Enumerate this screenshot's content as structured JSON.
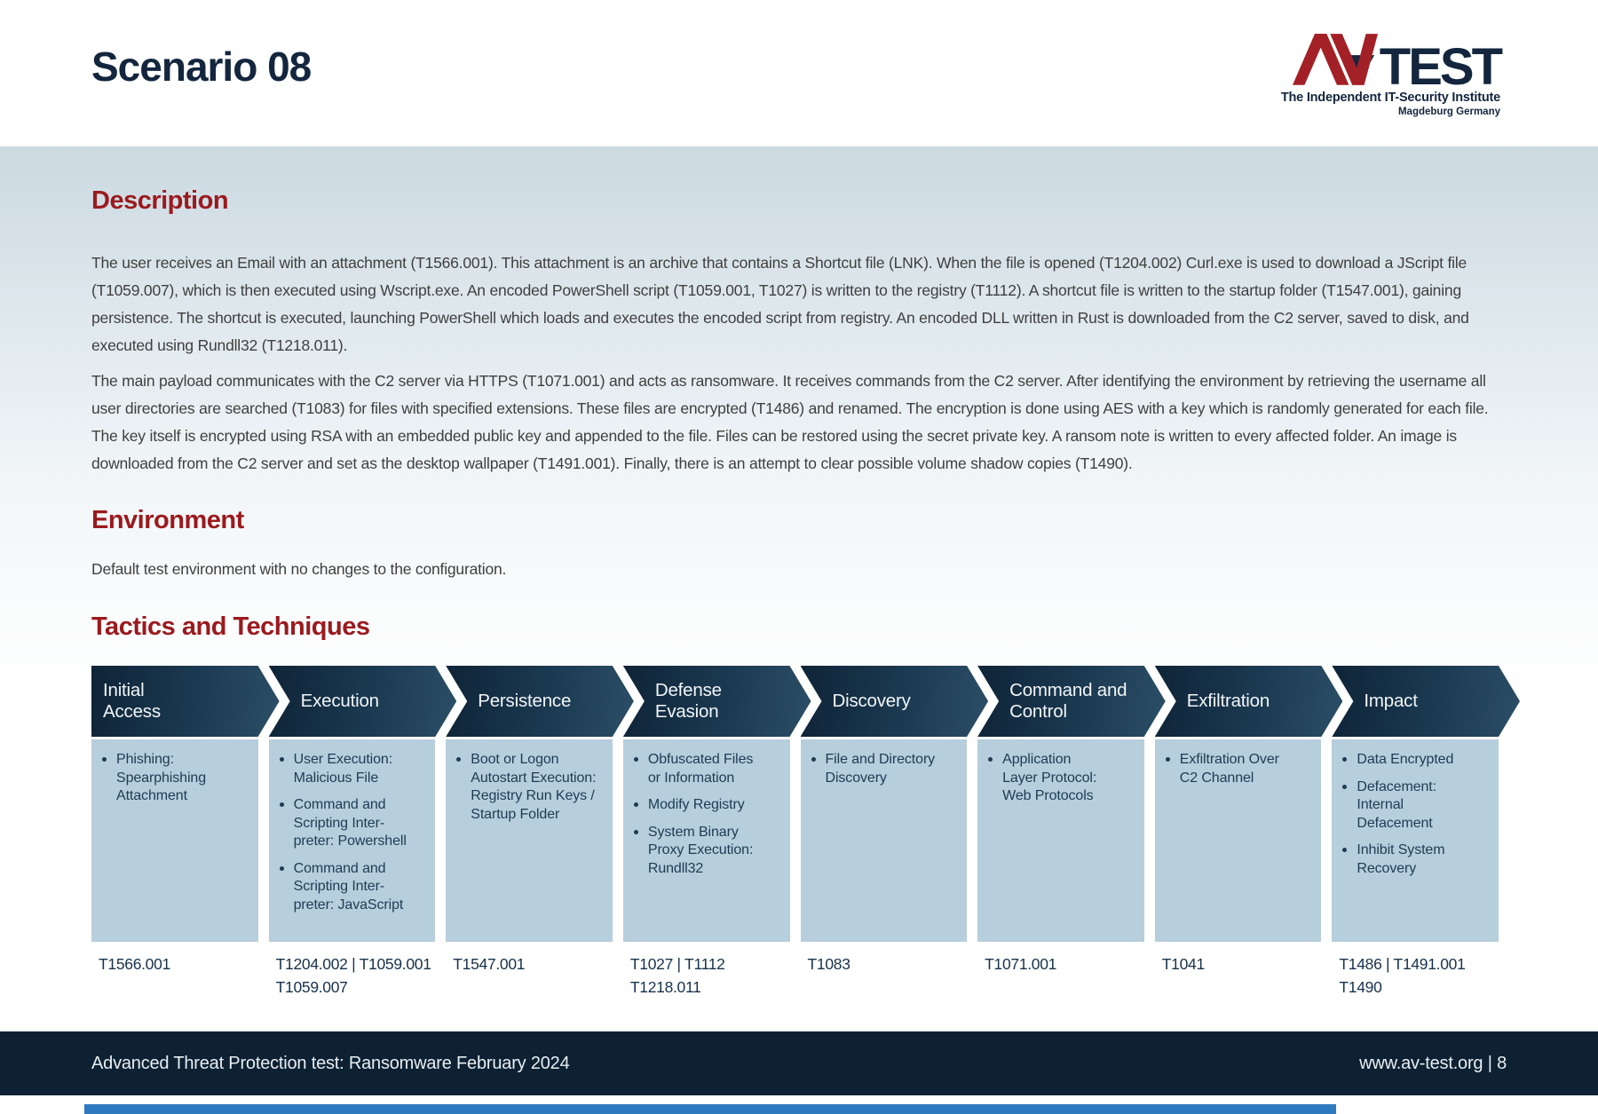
{
  "page": {
    "title": "Scenario 08"
  },
  "logo": {
    "test": "TEST",
    "tagline": "The Independent IT-Security Institute",
    "location": "Magdeburg Germany"
  },
  "description": {
    "heading": "Description",
    "paragraphs": [
      "The user receives an Email with an attachment (T1566.001). This attachment is an archive that contains a Shortcut file (LNK). When the file is opened (T1204.002) Curl.exe is used to download a JScript file (T1059.007), which is then executed using Wscript.exe. An encoded PowerShell script (T1059.001, T1027) is written to the registry (T1112). A shortcut file is written to the startup folder (T1547.001), gaining persistence. The shortcut is executed, launching PowerShell which loads and executes the encoded script from registry. An encoded DLL written in Rust is downloaded from the C2 server, saved to disk, and executed using Rundll32 (T1218.011).",
      "The main payload communicates with the C2 server via HTTPS (T1071.001) and acts as ransomware. It receives commands from the C2 server. After identifying the environment by retrieving the username all user directories are searched (T1083) for files with specified extensions. These files are encrypted (T1486) and renamed. The encryption is done using AES with a key which is randomly generated for each file. The key itself is encrypted using RSA with an embedded public key and appended to the file. Files can be restored using the secret private key. A ransom note is written to every affected folder. An image is downloaded from the C2 server and set as the desktop wallpaper (T1491.001). Finally, there is an attempt to clear possible volume shadow copies (T1490)."
    ]
  },
  "environment": {
    "heading": "Environment",
    "body": "Default test environment with no changes to the configuration."
  },
  "tactics": {
    "heading": "Tactics and Techniques"
  },
  "table": {
    "columns": [
      {
        "tactic": "Initial\nAccess",
        "techniques": [
          "Phishing:\nSpearphishing\nAttachment"
        ],
        "ids": [
          "T1566.001"
        ]
      },
      {
        "tactic": "Execution",
        "techniques": [
          "User Execution:\nMalicious File",
          "Command and\nScripting Inter-\npreter: Powershell",
          "Command and\nScripting Inter-\npreter: JavaScript"
        ],
        "ids": [
          "T1204.002 | T1059.001",
          "T1059.007"
        ]
      },
      {
        "tactic": "Persistence",
        "techniques": [
          "Boot or Logon\nAutostart Execution:\nRegistry Run Keys /\nStartup Folder"
        ],
        "ids": [
          "T1547.001"
        ]
      },
      {
        "tactic": "Defense\nEvasion",
        "techniques": [
          "Obfuscated Files\nor Information",
          "Modify Registry",
          "System Binary\nProxy Execution:\nRundll32"
        ],
        "ids": [
          "T1027 | T1112",
          "T1218.011"
        ]
      },
      {
        "tactic": "Discovery",
        "techniques": [
          "File and Directory\nDiscovery"
        ],
        "ids": [
          "T1083"
        ]
      },
      {
        "tactic": "Command and\nControl",
        "techniques": [
          "Application\nLayer Protocol:\nWeb Protocols"
        ],
        "ids": [
          "T1071.001"
        ]
      },
      {
        "tactic": "Exfiltration",
        "techniques": [
          "Exfiltration Over\nC2 Channel"
        ],
        "ids": [
          "T1041"
        ]
      },
      {
        "tactic": "Impact",
        "techniques": [
          "Data Encrypted",
          "Defacement:\nInternal\nDefacement",
          "Inhibit System\nRecovery"
        ],
        "ids": [
          "T1486 | T1491.001",
          "T1490"
        ]
      }
    ]
  },
  "footer": {
    "left": "Advanced Threat Protection test: Ransomware February 2024",
    "right": "www.av-test.org | 8"
  },
  "colors": {
    "accent_red": "#9a1a1e",
    "navy": "#13263e",
    "logo_red": "#a32026",
    "header_gradient_dark": "#0f2438",
    "header_gradient_light": "#2b4e66",
    "cell_blue": "#b7cedc",
    "cell_text_navy": "#1d3c54",
    "footer_navy": "#0d2133",
    "band_blue_gray": "#ccd9e1",
    "bottom_bar_blue": "#2f79c0"
  }
}
